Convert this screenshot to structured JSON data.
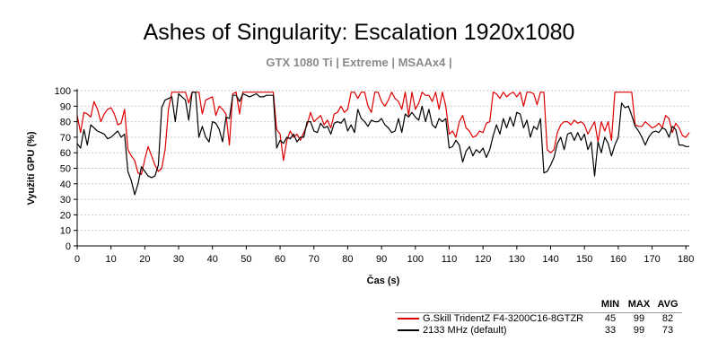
{
  "chart_data": {
    "type": "line",
    "title": "Ashes of Singularity: Escalation 1920x1080",
    "subtitle": "GTX 1080 Ti | Extreme | MSAAx4 |",
    "xlabel": "Čas (s)",
    "ylabel": "Využití GPU (%)",
    "xlim": [
      0,
      181
    ],
    "ylim": [
      0,
      100
    ],
    "xticks": [
      0,
      10,
      20,
      30,
      40,
      50,
      60,
      70,
      80,
      90,
      100,
      110,
      120,
      130,
      140,
      150,
      160,
      170,
      180
    ],
    "yticks": [
      0,
      10,
      20,
      30,
      40,
      50,
      60,
      70,
      80,
      90,
      100
    ],
    "grid": "horizontal",
    "legend_headers": [
      "MIN",
      "MAX",
      "AVG"
    ],
    "series": [
      {
        "name": "G.Skill TridentZ F4-3200C16-8GTZR",
        "color": "#dd0000",
        "min": "45",
        "max": "99",
        "avg": "82",
        "x": [
          0,
          1,
          2,
          3,
          4,
          5,
          6,
          7,
          8,
          9,
          10,
          11,
          12,
          13,
          14,
          15,
          16,
          17,
          18,
          19,
          20,
          21,
          22,
          23,
          24,
          25,
          26,
          27,
          28,
          29,
          30,
          31,
          32,
          33,
          34,
          35,
          36,
          37,
          38,
          39,
          40,
          41,
          42,
          43,
          44,
          45,
          46,
          47,
          48,
          49,
          50,
          51,
          52,
          53,
          54,
          55,
          56,
          57,
          58,
          59,
          60,
          61,
          62,
          63,
          64,
          65,
          66,
          67,
          68,
          69,
          70,
          71,
          72,
          73,
          74,
          75,
          76,
          77,
          78,
          79,
          80,
          81,
          82,
          83,
          84,
          85,
          86,
          87,
          88,
          89,
          90,
          91,
          92,
          93,
          94,
          95,
          96,
          97,
          98,
          99,
          100,
          101,
          102,
          103,
          104,
          105,
          106,
          107,
          108,
          109,
          110,
          111,
          112,
          113,
          114,
          115,
          116,
          117,
          118,
          119,
          120,
          121,
          122,
          123,
          124,
          125,
          126,
          127,
          128,
          129,
          130,
          131,
          132,
          133,
          134,
          135,
          136,
          137,
          138,
          139,
          140,
          141,
          142,
          143,
          144,
          145,
          146,
          147,
          148,
          149,
          150,
          151,
          152,
          153,
          154,
          155,
          156,
          157,
          158,
          159,
          160,
          161,
          162,
          163,
          164,
          165,
          166,
          167,
          168,
          169,
          170,
          171,
          172,
          173,
          174,
          175,
          176,
          177,
          178,
          179,
          180,
          181
        ],
        "y": [
          84,
          73,
          86,
          85,
          83,
          93,
          88,
          80,
          85,
          88,
          89,
          85,
          78,
          79,
          88,
          62,
          58,
          55,
          47,
          46,
          56,
          64,
          58,
          52,
          48,
          50,
          62,
          88,
          99,
          99,
          99,
          99,
          99,
          92,
          99,
          99,
          99,
          85,
          94,
          95,
          96,
          84,
          90,
          88,
          85,
          65,
          98,
          99,
          85,
          99,
          99,
          99,
          99,
          99,
          99,
          99,
          99,
          99,
          99,
          75,
          72,
          55,
          68,
          74,
          70,
          72,
          68,
          73,
          78,
          86,
          80,
          82,
          84,
          78,
          81,
          76,
          85,
          86,
          90,
          86,
          88,
          99,
          99,
          95,
          99,
          99,
          90,
          86,
          99,
          99,
          93,
          90,
          94,
          99,
          95,
          93,
          88,
          99,
          84,
          99,
          88,
          92,
          99,
          97,
          97,
          93,
          99,
          88,
          99,
          90,
          72,
          74,
          70,
          80,
          84,
          76,
          74,
          70,
          71,
          74,
          73,
          79,
          80,
          99,
          98,
          95,
          99,
          96,
          98,
          99,
          96,
          99,
          90,
          99,
          99,
          98,
          91,
          99,
          99,
          62,
          60,
          62,
          73,
          78,
          80,
          80,
          78,
          81,
          79,
          80,
          78,
          72,
          76,
          80,
          67,
          80,
          74,
          80,
          68,
          99,
          99,
          99,
          99,
          99,
          99,
          78,
          77,
          77,
          80,
          78,
          76,
          77,
          79,
          76,
          84,
          82,
          73,
          79,
          76,
          71,
          70,
          73
        ]
      },
      {
        "name": "2133 MHz (default)",
        "color": "#000000",
        "min": "33",
        "max": "99",
        "avg": "73",
        "x": [
          0,
          1,
          2,
          3,
          4,
          5,
          6,
          7,
          8,
          9,
          10,
          11,
          12,
          13,
          14,
          15,
          16,
          17,
          18,
          19,
          20,
          21,
          22,
          23,
          24,
          25,
          26,
          27,
          28,
          29,
          30,
          31,
          32,
          33,
          34,
          35,
          36,
          37,
          38,
          39,
          40,
          41,
          42,
          43,
          44,
          45,
          46,
          47,
          48,
          49,
          50,
          51,
          52,
          53,
          54,
          55,
          56,
          57,
          58,
          59,
          60,
          61,
          62,
          63,
          64,
          65,
          66,
          67,
          68,
          69,
          70,
          71,
          72,
          73,
          74,
          75,
          76,
          77,
          78,
          79,
          80,
          81,
          82,
          83,
          84,
          85,
          86,
          87,
          88,
          89,
          90,
          91,
          92,
          93,
          94,
          95,
          96,
          97,
          98,
          99,
          100,
          101,
          102,
          103,
          104,
          105,
          106,
          107,
          108,
          109,
          110,
          111,
          112,
          113,
          114,
          115,
          116,
          117,
          118,
          119,
          120,
          121,
          122,
          123,
          124,
          125,
          126,
          127,
          128,
          129,
          130,
          131,
          132,
          133,
          134,
          135,
          136,
          137,
          138,
          139,
          140,
          141,
          142,
          143,
          144,
          145,
          146,
          147,
          148,
          149,
          150,
          151,
          152,
          153,
          154,
          155,
          156,
          157,
          158,
          159,
          160,
          161,
          162,
          163,
          164,
          165,
          166,
          167,
          168,
          169,
          170,
          171,
          172,
          173,
          174,
          175,
          176,
          177,
          178,
          179,
          180,
          181
        ],
        "y": [
          66,
          63,
          75,
          65,
          78,
          76,
          74,
          73,
          72,
          69,
          70,
          72,
          74,
          70,
          72,
          48,
          42,
          33,
          40,
          51,
          48,
          45,
          44,
          45,
          52,
          89,
          94,
          95,
          96,
          80,
          98,
          96,
          94,
          81,
          99,
          99,
          70,
          77,
          70,
          67,
          80,
          79,
          75,
          67,
          83,
          82,
          97,
          97,
          93,
          98,
          97,
          96,
          97,
          98,
          96,
          96,
          97,
          97,
          97,
          63,
          68,
          66,
          70,
          69,
          72,
          67,
          70,
          70,
          80,
          80,
          74,
          73,
          79,
          76,
          77,
          72,
          79,
          80,
          79,
          82,
          74,
          78,
          73,
          88,
          82,
          80,
          77,
          81,
          80,
          80,
          82,
          78,
          76,
          73,
          74,
          82,
          73,
          85,
          83,
          86,
          83,
          81,
          90,
          80,
          88,
          78,
          76,
          82,
          80,
          82,
          63,
          64,
          68,
          65,
          54,
          61,
          64,
          58,
          62,
          60,
          63,
          57,
          62,
          71,
          78,
          72,
          82,
          76,
          83,
          77,
          86,
          85,
          76,
          81,
          70,
          77,
          75,
          82,
          47,
          48,
          52,
          57,
          66,
          70,
          62,
          72,
          73,
          68,
          73,
          68,
          72,
          62,
          67,
          45,
          67,
          60,
          70,
          66,
          58,
          65,
          70,
          92,
          89,
          90,
          84,
          77,
          74,
          70,
          65,
          70,
          73,
          74,
          73,
          76,
          75,
          70,
          77,
          75,
          65,
          65,
          64,
          64
        ]
      }
    ]
  }
}
